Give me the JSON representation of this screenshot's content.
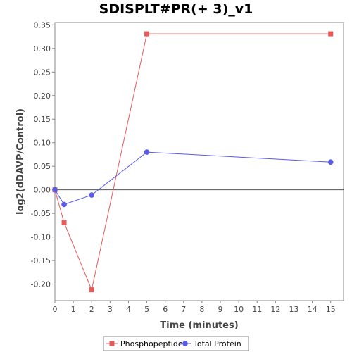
{
  "chart_data": {
    "type": "line",
    "title": "SDISPLT#PR(+ 3)_v1",
    "xlabel": "Time (minutes)",
    "ylabel": "log2(dDAVP/Control)",
    "xlim": [
      0,
      15.7
    ],
    "ylim": [
      -0.235,
      0.355
    ],
    "xticks": [
      0,
      1,
      2,
      3,
      4,
      5,
      6,
      7,
      8,
      9,
      10,
      11,
      12,
      13,
      14,
      15
    ],
    "yticks": [
      -0.2,
      -0.15,
      -0.1,
      -0.05,
      0.0,
      0.05,
      0.1,
      0.15,
      0.2,
      0.25,
      0.3,
      0.35
    ],
    "ytick_labels": [
      "-0.20",
      "-0.15",
      "-0.10",
      "-0.05",
      "0.00",
      "0.05",
      "0.10",
      "0.15",
      "0.20",
      "0.25",
      "0.30",
      "0.35"
    ],
    "grid": false,
    "zero_line": true,
    "legend_position": "bottom",
    "series": [
      {
        "name": "Phosphopeptide",
        "color": "#e85a5a",
        "marker": "square",
        "x": [
          0,
          0.5,
          2,
          5,
          15
        ],
        "y": [
          0.0,
          -0.07,
          -0.212,
          0.331,
          0.331
        ]
      },
      {
        "name": "Total Protein",
        "color": "#5a5ae8",
        "marker": "circle",
        "x": [
          0,
          0.5,
          2,
          5,
          15
        ],
        "y": [
          0.0,
          -0.031,
          -0.011,
          0.08,
          0.059
        ]
      }
    ]
  }
}
